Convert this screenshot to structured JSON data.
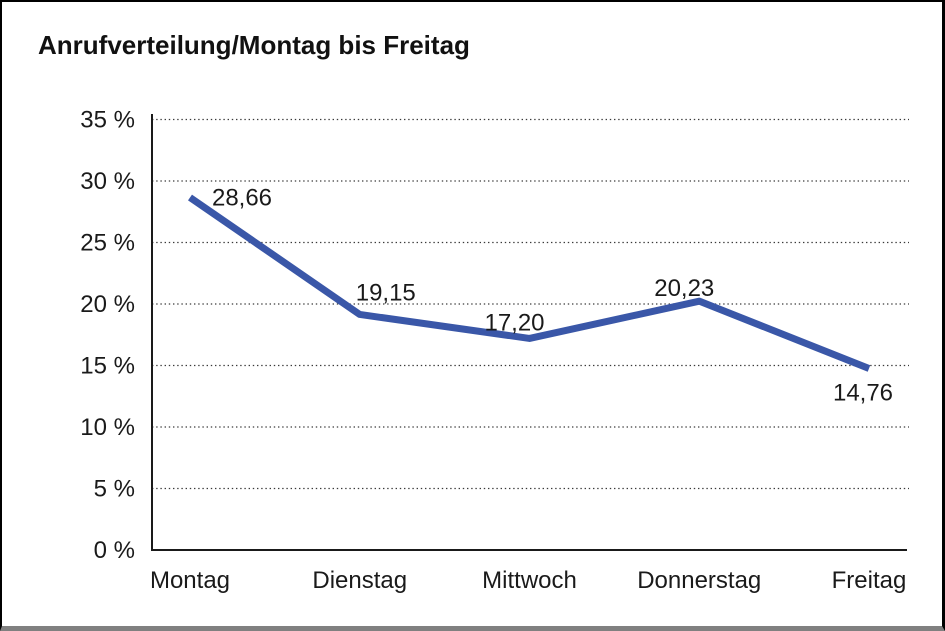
{
  "frame": {
    "background": "#ffffff",
    "border_color": "#000000",
    "bottom_edge_color": "#808080"
  },
  "chart_data": {
    "type": "line",
    "title": "Anrufverteilung/Montag bis Freitag",
    "categories": [
      "Montag",
      "Dienstag",
      "Mittwoch",
      "Donnerstag",
      "Freitag"
    ],
    "values": [
      28.66,
      19.15,
      17.2,
      20.23,
      14.76
    ],
    "value_labels": [
      "28,66",
      "19,15",
      "17,20",
      "20,23",
      "14,76"
    ],
    "label_positions": [
      "above-right",
      "above",
      "above-left",
      "above-left",
      "below"
    ],
    "ylim": [
      0,
      35
    ],
    "ytick_step": 5,
    "ytick_labels": [
      "0 %",
      "5 %",
      "10 %",
      "15 %",
      "20 %",
      "25 %",
      "30 %",
      "35 %"
    ],
    "xlabel": "",
    "ylabel": "",
    "grid": "horizontal-dotted",
    "legend": "none",
    "line_color": "#3A57A8",
    "grid_color": "#3a3a3a",
    "axis_color": "#1a1a1a",
    "text_color": "#1a1a1a"
  }
}
